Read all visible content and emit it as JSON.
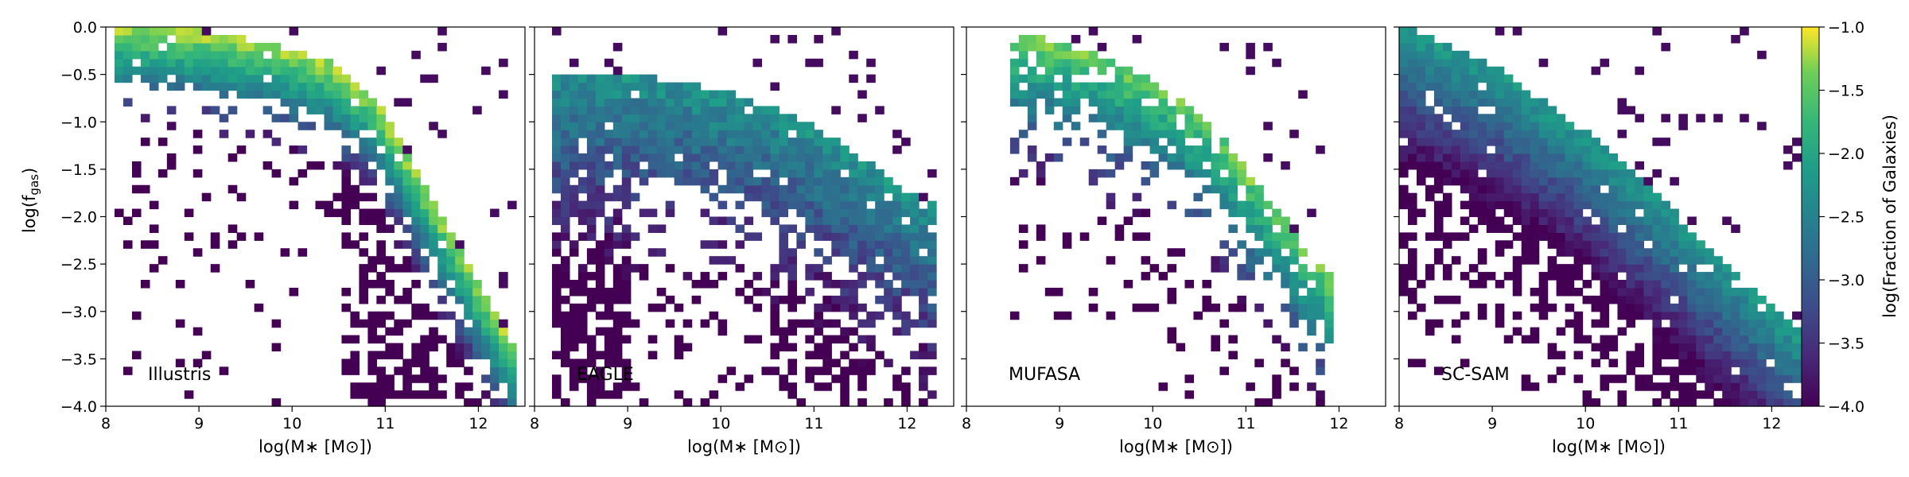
{
  "chart_data": {
    "type": "heatmap",
    "xlabel": "log(M∗ [M⊙])",
    "ylabel_main": "log(f",
    "ylabel_sub": "gas",
    "ylabel_close": ")",
    "xlim": [
      8,
      12.5
    ],
    "ylim": [
      -4.0,
      0.0
    ],
    "xticks": [
      "8",
      "9",
      "10",
      "11",
      "12"
    ],
    "yticks": [
      "0.0",
      "−0.5",
      "−1.0",
      "−1.5",
      "−2.0",
      "−2.5",
      "−3.0",
      "−3.5",
      "−4.0"
    ],
    "colorbar": {
      "label": "log(Fraction of Galaxies)",
      "range": [
        -4.0,
        -1.0
      ],
      "ticks": [
        "−1.0",
        "−1.5",
        "−2.0",
        "−2.5",
        "−3.0",
        "−3.5",
        "−4.0"
      ],
      "colormap": "viridis"
    },
    "panels": [
      {
        "name": "Illustris",
        "ridge": [
          [
            8.1,
            -0.03
          ],
          [
            9.0,
            -0.08
          ],
          [
            9.8,
            -0.22
          ],
          [
            10.4,
            -0.42
          ],
          [
            10.9,
            -0.82
          ],
          [
            11.2,
            -1.35
          ]
        ],
        "x_extent": [
          8.1,
          12.4
        ],
        "peak": -1.05,
        "bottom_density": "high-mass tail"
      },
      {
        "name": "EAGLE",
        "ridge": [
          [
            8.2,
            -0.55
          ],
          [
            9.0,
            -0.52
          ],
          [
            10.0,
            -0.72
          ],
          [
            10.8,
            -0.98
          ],
          [
            11.3,
            -1.3
          ]
        ],
        "x_extent": [
          8.15,
          12.35
        ],
        "peak": -2.0,
        "bottom_density": "low-mass tail"
      },
      {
        "name": "MUFASA",
        "ridge": [
          [
            8.6,
            -0.12
          ],
          [
            9.4,
            -0.32
          ],
          [
            10.0,
            -0.62
          ],
          [
            10.6,
            -1.05
          ],
          [
            11.0,
            -1.55
          ]
        ],
        "x_extent": [
          8.5,
          11.9
        ],
        "peak": -1.2,
        "bottom_density": "sparse"
      },
      {
        "name": "SC-SAM",
        "ridge": [
          [
            8.1,
            -0.05
          ],
          [
            9.0,
            -0.45
          ],
          [
            10.0,
            -1.15
          ],
          [
            11.0,
            -2.05
          ],
          [
            12.0,
            -3.0
          ]
        ],
        "x_extent": [
          8.0,
          12.3
        ],
        "peak": -2.0,
        "bottom_density": "diagonal band"
      }
    ]
  }
}
